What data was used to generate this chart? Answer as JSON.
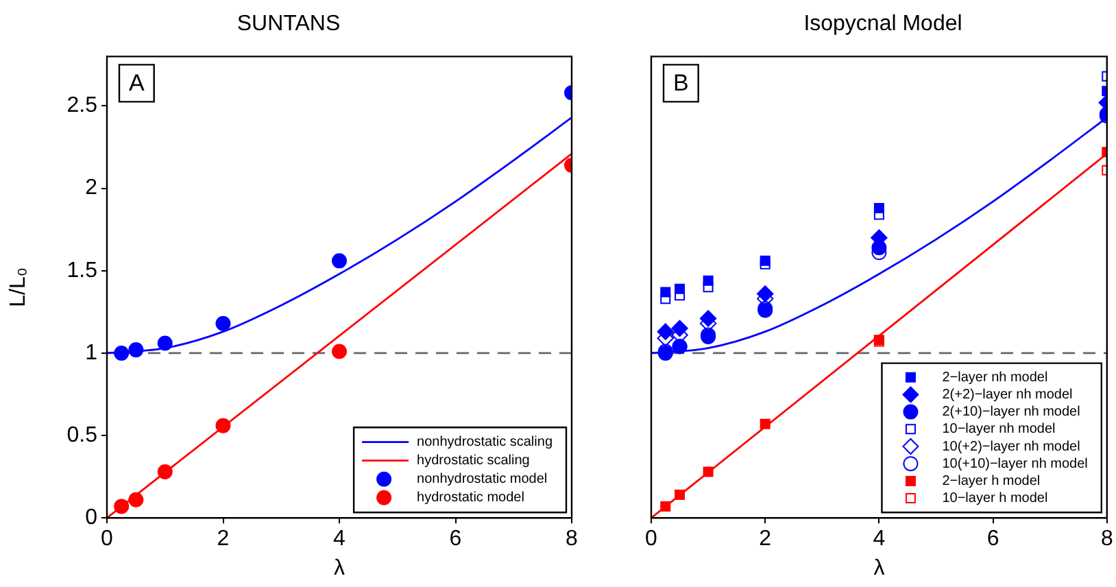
{
  "chart_data": [
    {
      "type": "scatter",
      "title": "SUNTANS",
      "xlabel": "λ",
      "ylabel": "L/L₀",
      "xlim": [
        0,
        8
      ],
      "ylim": [
        0,
        2.8
      ],
      "xticks": [
        0,
        2,
        4,
        6,
        8
      ],
      "yticks": [
        0,
        0.5,
        1,
        1.5,
        2,
        2.5
      ],
      "grid": false,
      "legend": "bottom right",
      "annotations": [
        "A"
      ],
      "ref_lines": [
        {
          "axis": "y",
          "value": 1,
          "color": "#666666",
          "line_style": "dashed"
        }
      ],
      "series": [
        {
          "name": "nonhydrostatic scaling",
          "type": "line",
          "color": "#0000ff",
          "marker": "none",
          "x": [
            0,
            1,
            2,
            3,
            4,
            5,
            6,
            7,
            8
          ],
          "values": [
            1.0,
            1.03,
            1.13,
            1.29,
            1.48,
            1.69,
            1.92,
            2.17,
            2.43
          ]
        },
        {
          "name": "hydrostatic scaling",
          "type": "line",
          "color": "#ff0000",
          "marker": "none",
          "x": [
            0,
            8
          ],
          "values": [
            0,
            2.21
          ]
        },
        {
          "name": "nonhydrostatic model",
          "type": "scatter",
          "color": "#0000ff",
          "marker": "circle",
          "x": [
            0.25,
            0.5,
            1,
            2,
            4,
            8
          ],
          "values": [
            1.0,
            1.02,
            1.06,
            1.18,
            1.56,
            2.58
          ]
        },
        {
          "name": "hydrostatic model",
          "type": "scatter",
          "color": "#ff0000",
          "marker": "circle",
          "x": [
            0.25,
            0.5,
            1,
            2,
            4,
            8
          ],
          "values": [
            0.07,
            0.11,
            0.28,
            0.56,
            1.01,
            2.14
          ]
        }
      ]
    },
    {
      "type": "scatter",
      "title": "Isopycnal Model",
      "xlabel": "λ",
      "xlim": [
        0,
        8
      ],
      "ylim": [
        0,
        2.8
      ],
      "xticks": [
        0,
        2,
        4,
        6,
        8
      ],
      "yticks": [
        0,
        0.5,
        1,
        1.5,
        2,
        2.5
      ],
      "tick_labels": "x",
      "grid": false,
      "legend": "bottom right",
      "annotations": [
        "B"
      ],
      "ref_lines": [
        {
          "axis": "y",
          "value": 1,
          "color": "#666666",
          "line_style": "dashed"
        }
      ],
      "series": [
        {
          "type": "line",
          "color": "#0000ff",
          "marker": "none",
          "x": [
            0,
            1,
            2,
            3,
            4,
            5,
            6,
            7,
            8
          ],
          "values": [
            1.0,
            1.03,
            1.13,
            1.29,
            1.48,
            1.69,
            1.92,
            2.17,
            2.43
          ]
        },
        {
          "type": "line",
          "color": "#ff0000",
          "marker": "none",
          "x": [
            0,
            8
          ],
          "values": [
            0,
            2.21
          ]
        },
        {
          "name": "2−layer nh model",
          "type": "scatter",
          "color": "#0000ff",
          "marker": "square",
          "x": [
            0.25,
            0.5,
            1,
            2,
            4,
            8
          ],
          "values": [
            1.37,
            1.39,
            1.44,
            1.56,
            1.88,
            2.59
          ]
        },
        {
          "name": "2(+2)−layer nh model",
          "type": "scatter",
          "color": "#0000ff",
          "marker": "diamond",
          "x": [
            0.25,
            0.5,
            1,
            2,
            4,
            8
          ],
          "values": [
            1.13,
            1.15,
            1.21,
            1.36,
            1.7,
            2.52
          ]
        },
        {
          "name": "2(+10)−layer nh model",
          "type": "scatter",
          "color": "#0000ff",
          "marker": "circle",
          "x": [
            0.25,
            0.5,
            1,
            2,
            4,
            8
          ],
          "values": [
            1.0,
            1.04,
            1.1,
            1.26,
            1.64,
            2.45
          ]
        },
        {
          "name": "10−layer nh model",
          "type": "scatter",
          "color": "#0000ff",
          "marker": "square-open",
          "x": [
            0.25,
            0.5,
            1,
            2,
            4,
            8
          ],
          "values": [
            1.33,
            1.35,
            1.4,
            1.54,
            1.84,
            2.68
          ]
        },
        {
          "name": "10(+2)−layer nh model",
          "type": "scatter",
          "color": "#0000ff",
          "marker": "diamond-open",
          "x": [
            0.25,
            0.5,
            1,
            2
          ],
          "values": [
            1.09,
            1.11,
            1.18,
            1.33
          ]
        },
        {
          "name": "10(+10)−layer nh model",
          "type": "scatter",
          "color": "#0000ff",
          "marker": "circle-open",
          "x": [
            0.25,
            0.5,
            1,
            2,
            4,
            8
          ],
          "values": [
            1.01,
            1.04,
            1.11,
            1.27,
            1.61,
            2.44
          ]
        },
        {
          "name": "2−layer h model",
          "type": "scatter",
          "color": "#ff0000",
          "marker": "square",
          "x": [
            0.25,
            0.5,
            1,
            2,
            4,
            8
          ],
          "values": [
            0.07,
            0.14,
            0.28,
            0.57,
            1.08,
            2.22
          ]
        },
        {
          "name": "10−layer h model",
          "type": "scatter",
          "color": "#ff0000",
          "marker": "square-open",
          "x": [
            4,
            8
          ],
          "values": [
            1.07,
            2.11
          ]
        }
      ]
    }
  ]
}
